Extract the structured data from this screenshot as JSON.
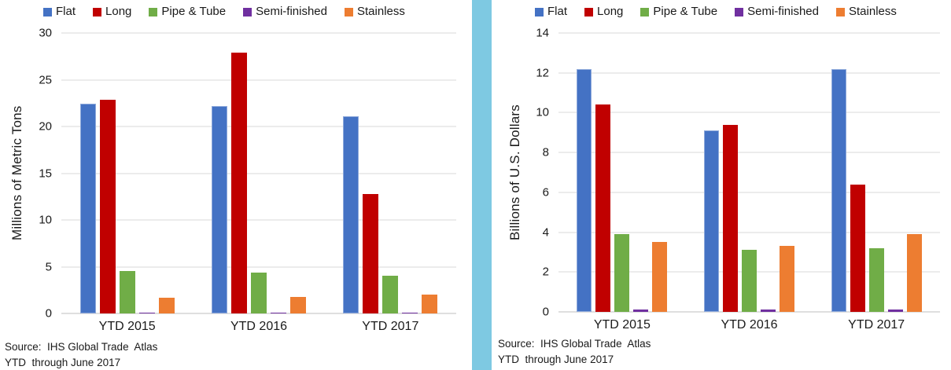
{
  "page": {
    "background": "#FFFFFF",
    "divider_color": "#7EC9E2",
    "text_color": "#1A1A1A",
    "gridline_color": "#D9D9D9"
  },
  "source": {
    "line1": "Source:  IHS Global Trade  Atlas",
    "line2": "YTD  through June 2017"
  },
  "chart_data": [
    {
      "type": "bar",
      "title": "",
      "ylabel": "Millions of Metric Tons",
      "xlabel": "",
      "categories": [
        "YTD 2015",
        "YTD 2016",
        "YTD 2017"
      ],
      "series": [
        {
          "name": "Flat",
          "color": "#4472C4",
          "border": "#8EA9DB",
          "values": [
            22.4,
            22.2,
            21.1
          ]
        },
        {
          "name": "Long",
          "color": "#C00000",
          "values": [
            22.9,
            27.9,
            12.8
          ]
        },
        {
          "name": "Pipe & Tube",
          "color": "#70AD47",
          "values": [
            4.5,
            4.4,
            4.0
          ]
        },
        {
          "name": "Semi-finished",
          "color": "#7030A0",
          "values": [
            0.05,
            0.05,
            0.05
          ]
        },
        {
          "name": "Stainless",
          "color": "#ED7D31",
          "values": [
            1.7,
            1.8,
            2.0
          ]
        }
      ],
      "ylim": [
        0,
        30
      ],
      "yticks": [
        0,
        5,
        10,
        15,
        20,
        25,
        30
      ],
      "grid": true,
      "legend_position": "top"
    },
    {
      "type": "bar",
      "title": "",
      "ylabel": "Billions of U.S. Dollars",
      "xlabel": "",
      "categories": [
        "YTD 2015",
        "YTD 2016",
        "YTD 2017"
      ],
      "series": [
        {
          "name": "Flat",
          "color": "#4472C4",
          "border": "#8EA9DB",
          "values": [
            12.2,
            9.1,
            12.2
          ]
        },
        {
          "name": "Long",
          "color": "#C00000",
          "values": [
            10.4,
            9.4,
            6.4
          ]
        },
        {
          "name": "Pipe & Tube",
          "color": "#70AD47",
          "values": [
            3.9,
            3.1,
            3.2
          ]
        },
        {
          "name": "Semi-finished",
          "color": "#7030A0",
          "values": [
            0.1,
            0.1,
            0.1
          ]
        },
        {
          "name": "Stainless",
          "color": "#ED7D31",
          "values": [
            3.5,
            3.3,
            3.9
          ]
        }
      ],
      "ylim": [
        0,
        14
      ],
      "yticks": [
        0,
        2,
        4,
        6,
        8,
        10,
        12,
        14
      ],
      "grid": true,
      "legend_position": "top"
    }
  ]
}
